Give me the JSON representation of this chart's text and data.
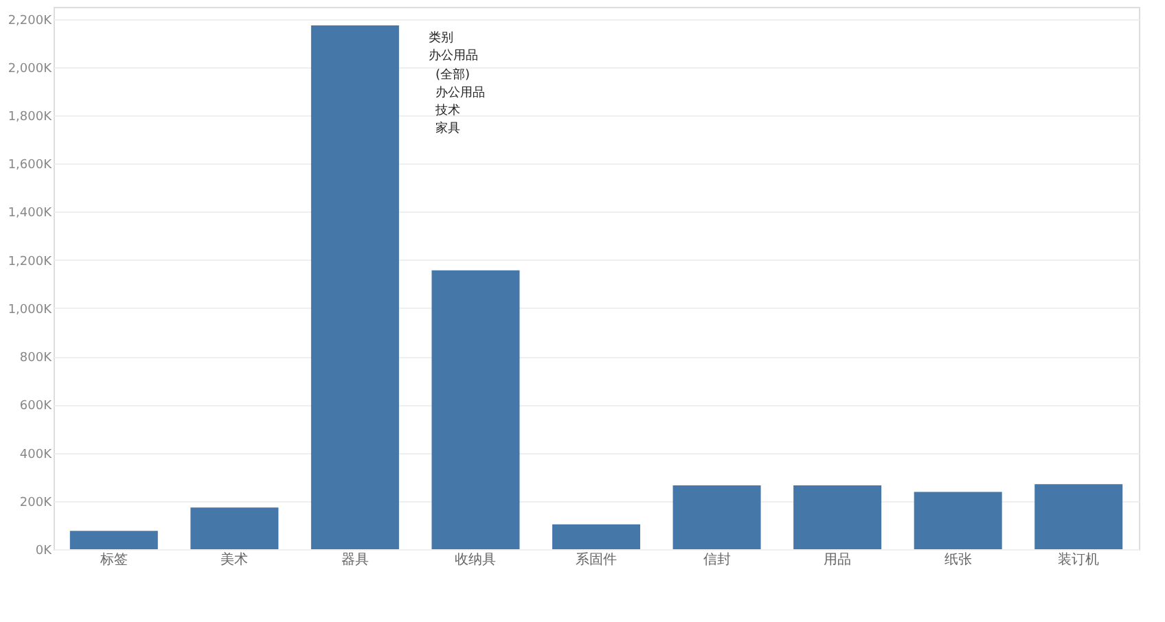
{
  "chart_data": {
    "type": "bar",
    "categories": [
      "标签",
      "美术",
      "器具",
      "收纳具",
      "系固件",
      "信封",
      "用品",
      "纸张",
      "装订机"
    ],
    "values": [
      76000,
      173000,
      2173000,
      1157000,
      103000,
      265000,
      265000,
      238000,
      270000
    ],
    "color": "#4577a8",
    "ylim": [
      0,
      2250000
    ],
    "yticks": [
      {
        "value": 0,
        "label": "0K"
      },
      {
        "value": 200000,
        "label": "200K"
      },
      {
        "value": 400000,
        "label": "400K"
      },
      {
        "value": 600000,
        "label": "600K"
      },
      {
        "value": 800000,
        "label": "800K"
      },
      {
        "value": 1000000,
        "label": "1,000K"
      },
      {
        "value": 1200000,
        "label": "1,200K"
      },
      {
        "value": 1400000,
        "label": "1,400K"
      },
      {
        "value": 1600000,
        "label": "1,600K"
      },
      {
        "value": 1800000,
        "label": "1,800K"
      },
      {
        "value": 2000000,
        "label": "2,000K"
      },
      {
        "value": 2200000,
        "label": "2,200K"
      }
    ],
    "grid": "y",
    "annotations": [
      "类别",
      "办公用品",
      "(全部)",
      "办公用品",
      "技术",
      "家具"
    ]
  }
}
